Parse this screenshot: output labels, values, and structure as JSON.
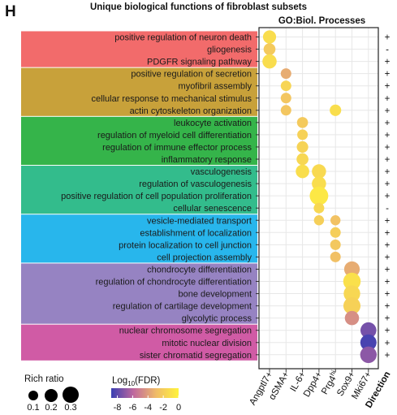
{
  "panel_letter": "H",
  "title": "Unique biological functions of fibroblast subsets",
  "chart_data": {
    "type": "scatter",
    "subtitle": "GO:Biol. Processes",
    "columns": [
      "Angptl7+",
      "αSMA+",
      "IL-6+",
      "Dpp4+",
      "Prg4hi",
      "Sox9+",
      "Mki67+"
    ],
    "direction_label": "Direction",
    "groups": [
      {
        "color": "#f26b6b",
        "terms": [
          "positive regulation of neuron death",
          "gliogenesis",
          "PDGFR signaling pathway"
        ]
      },
      {
        "color": "#c8a13a",
        "terms": [
          "positive regulation of secretion",
          "myofibril assembly",
          "cellular response to mechanical stimulus",
          "actin cytoskeleton organization"
        ]
      },
      {
        "color": "#35b44a",
        "terms": [
          "leukocyte activation",
          "regulation of myeloid cell differentiation",
          "regulation of immune effector process",
          "inflammatory response"
        ]
      },
      {
        "color": "#33bc8c",
        "terms": [
          "vasculogenesis",
          "regulation of vasculogenesis",
          "positive regulation of cell population proliferation",
          "cellular senescence"
        ]
      },
      {
        "color": "#28b6ec",
        "terms": [
          "vesicle-mediated transport",
          "establishment of localization",
          "protein localization to cell junction",
          "cell projection assembly"
        ]
      },
      {
        "color": "#9683c2",
        "terms": [
          "chondrocyte differentiation",
          "regulation of chondrocyte differentiation",
          "bone development",
          "regulation of cartilage development",
          "glycolytic process"
        ]
      },
      {
        "color": "#d05ba5",
        "terms": [
          "nuclear chromosome segregation",
          "mitotic nuclear division",
          "sister chromatid segregation"
        ]
      }
    ],
    "direction": [
      "+",
      "-",
      "+",
      "+",
      "+",
      "+",
      "+",
      "+",
      "+",
      "+",
      "+",
      "+",
      "+",
      "+",
      "-",
      "+",
      "+",
      "+",
      "+",
      "+",
      "+",
      "+",
      "+",
      "+",
      "+",
      "+",
      "+"
    ],
    "points": [
      {
        "term": 0,
        "col": 0,
        "ratio": 0.17,
        "log10fdr": -1.2
      },
      {
        "term": 1,
        "col": 0,
        "ratio": 0.14,
        "log10fdr": -2.2
      },
      {
        "term": 2,
        "col": 0,
        "ratio": 0.2,
        "log10fdr": -1.2
      },
      {
        "term": 3,
        "col": 1,
        "ratio": 0.11,
        "log10fdr": -3.5
      },
      {
        "term": 4,
        "col": 1,
        "ratio": 0.11,
        "log10fdr": -1.6
      },
      {
        "term": 5,
        "col": 1,
        "ratio": 0.11,
        "log10fdr": -2.4
      },
      {
        "term": 6,
        "col": 1,
        "ratio": 0.11,
        "log10fdr": -2.4
      },
      {
        "term": 6,
        "col": 4,
        "ratio": 0.13,
        "log10fdr": -1.1
      },
      {
        "term": 7,
        "col": 2,
        "ratio": 0.12,
        "log10fdr": -2.2
      },
      {
        "term": 8,
        "col": 2,
        "ratio": 0.11,
        "log10fdr": -1.8
      },
      {
        "term": 9,
        "col": 2,
        "ratio": 0.13,
        "log10fdr": -1.7
      },
      {
        "term": 10,
        "col": 2,
        "ratio": 0.14,
        "log10fdr": -1.5
      },
      {
        "term": 11,
        "col": 2,
        "ratio": 0.18,
        "log10fdr": -1.1
      },
      {
        "term": 11,
        "col": 3,
        "ratio": 0.2,
        "log10fdr": -1.4
      },
      {
        "term": 12,
        "col": 3,
        "ratio": 0.2,
        "log10fdr": -1.2
      },
      {
        "term": 13,
        "col": 3,
        "ratio": 0.34,
        "log10fdr": -0.6
      },
      {
        "term": 14,
        "col": 3,
        "ratio": 0.11,
        "log10fdr": -1.5
      },
      {
        "term": 15,
        "col": 3,
        "ratio": 0.1,
        "log10fdr": -1.9
      },
      {
        "term": 15,
        "col": 4,
        "ratio": 0.1,
        "log10fdr": -2.6
      },
      {
        "term": 16,
        "col": 4,
        "ratio": 0.11,
        "log10fdr": -2.0
      },
      {
        "term": 17,
        "col": 4,
        "ratio": 0.11,
        "log10fdr": -2.3
      },
      {
        "term": 18,
        "col": 4,
        "ratio": 0.11,
        "log10fdr": -2.7
      },
      {
        "term": 19,
        "col": 5,
        "ratio": 0.24,
        "log10fdr": -3.5
      },
      {
        "term": 20,
        "col": 5,
        "ratio": 0.3,
        "log10fdr": -1.0
      },
      {
        "term": 21,
        "col": 5,
        "ratio": 0.27,
        "log10fdr": -1.5
      },
      {
        "term": 22,
        "col": 5,
        "ratio": 0.29,
        "log10fdr": -1.8
      },
      {
        "term": 23,
        "col": 5,
        "ratio": 0.2,
        "log10fdr": -4.5
      },
      {
        "term": 24,
        "col": 6,
        "ratio": 0.25,
        "log10fdr": -7.5
      },
      {
        "term": 25,
        "col": 6,
        "ratio": 0.26,
        "log10fdr": -8.5
      },
      {
        "term": 26,
        "col": 6,
        "ratio": 0.27,
        "log10fdr": -7.0
      }
    ],
    "size_legend": {
      "title": "Rich ratio",
      "values": [
        0.1,
        0.2,
        0.3
      ],
      "labels": [
        "0.1",
        "0.2",
        "0.3"
      ]
    },
    "color_legend": {
      "title": "Log",
      "title_sub": "10",
      "title_rest": "(FDR)",
      "ticks": [
        "-8",
        "-6",
        "-4",
        "-2",
        "0"
      ],
      "range": [
        -8.8,
        0
      ],
      "colors": [
        "#3a3fb2",
        "#c0689e",
        "#f0bc68",
        "#fff33c"
      ]
    }
  }
}
